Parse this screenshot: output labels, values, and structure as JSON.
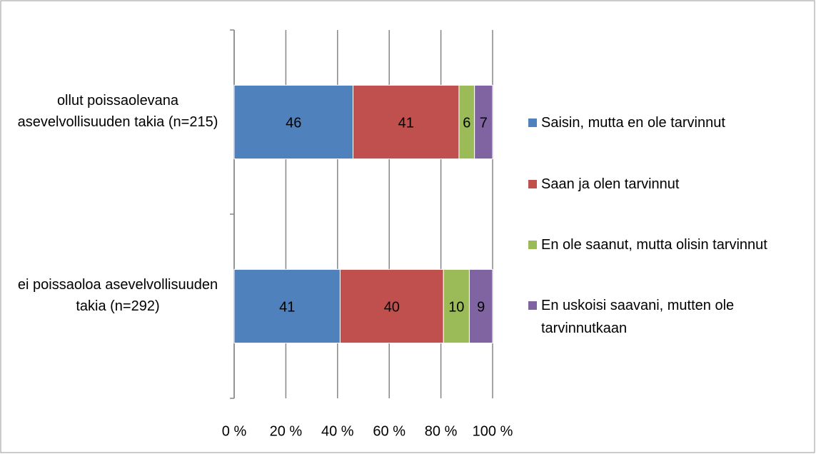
{
  "chart_data": {
    "type": "stacked-bar-horizontal",
    "categories": [
      "ollut poissaolevana asevelvollisuuden takia (n=215)",
      "ei poissaoloa asevelvollisuuden takia (n=292)"
    ],
    "series": [
      {
        "name": "Saisin, mutta en ole tarvinnut",
        "color": "#4f81bd",
        "values": [
          46,
          41
        ]
      },
      {
        "name": "Saan ja olen tarvinnut",
        "color": "#c0504d",
        "values": [
          41,
          40
        ]
      },
      {
        "name": "En ole saanut, mutta olisin tarvinnut",
        "color": "#9bbb59",
        "values": [
          6,
          10
        ]
      },
      {
        "name": "En uskoisi saavani, mutten ole tarvinnutkaan",
        "color": "#8064a2",
        "values": [
          7,
          9
        ]
      }
    ],
    "xlim": [
      0,
      100
    ],
    "xticks": [
      {
        "value": 0,
        "label": "0 %"
      },
      {
        "value": 20,
        "label": "20 %"
      },
      {
        "value": 40,
        "label": "40 %"
      },
      {
        "value": 60,
        "label": "60 %"
      },
      {
        "value": 80,
        "label": "80 %"
      },
      {
        "value": 100,
        "label": "100 %"
      }
    ],
    "grid": true,
    "legend": "right"
  }
}
